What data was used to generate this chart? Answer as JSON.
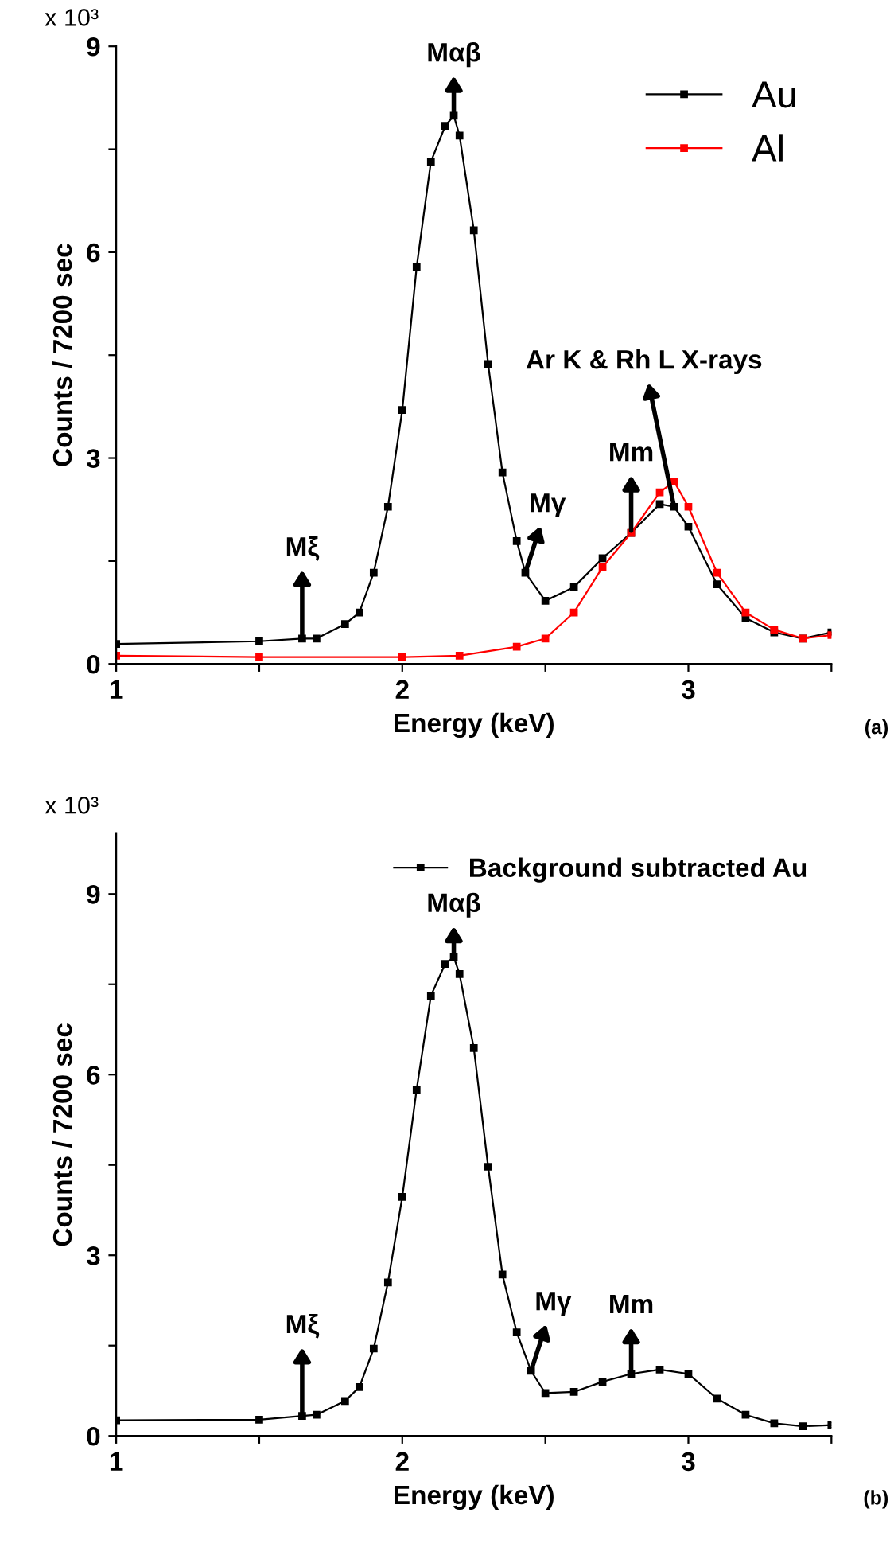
{
  "chart_data": [
    {
      "type": "line",
      "xlabel": "Energy (keV)",
      "ylabel": "Counts / 7200 sec",
      "xlim": [
        1,
        3.5
      ],
      "ylim": [
        0,
        9
      ],
      "xticks": [
        1,
        {
          "value": 1.5,
          "label": null
        },
        2,
        {
          "value": 2.5,
          "label": null
        },
        3,
        {
          "value": 3.5,
          "label": null
        }
      ],
      "yticks": [
        0,
        {
          "value": 1.5,
          "label": null
        },
        3,
        {
          "value": 4.5,
          "label": null
        },
        6,
        {
          "value": 7.5,
          "label": null
        },
        9
      ],
      "legend": "top right",
      "marker": "square",
      "line_style": "solid",
      "grid": false,
      "series": [
        {
          "name": "Au",
          "color": "#000000",
          "x": [
            1.0,
            1.5,
            1.65,
            1.7,
            1.8,
            1.85,
            1.9,
            1.95,
            2.0,
            2.05,
            2.1,
            2.15,
            2.18,
            2.2,
            2.25,
            2.3,
            2.35,
            2.4,
            2.43,
            2.5,
            2.6,
            2.7,
            2.8,
            2.9,
            2.95,
            3.0,
            3.1,
            3.2,
            3.3,
            3.4,
            3.5
          ],
          "values": [
            0.29,
            0.33,
            0.37,
            0.37,
            0.58,
            0.75,
            1.33,
            2.29,
            3.7,
            5.78,
            7.32,
            7.84,
            7.99,
            7.7,
            6.32,
            4.37,
            2.79,
            1.79,
            1.33,
            0.92,
            1.12,
            1.54,
            1.91,
            2.33,
            2.29,
            2.0,
            1.16,
            0.67,
            0.46,
            0.37,
            0.46
          ]
        },
        {
          "name": "Al",
          "color": "#ff0000",
          "x": [
            1.0,
            1.5,
            2.0,
            2.2,
            2.4,
            2.5,
            2.6,
            2.7,
            2.8,
            2.9,
            2.95,
            3.0,
            3.1,
            3.2,
            3.3,
            3.4,
            3.5
          ],
          "values": [
            0.12,
            0.1,
            0.1,
            0.12,
            0.25,
            0.37,
            0.75,
            1.41,
            1.91,
            2.5,
            2.66,
            2.29,
            1.33,
            0.75,
            0.5,
            0.37,
            0.42
          ]
        }
      ],
      "annotations": [
        "x 10³",
        {
          "text": "Mαβ",
          "x": 2.18,
          "y": 7.99
        },
        {
          "text": "Mξ",
          "x": 1.65,
          "y": 0.37
        },
        {
          "text": "Mγ",
          "x": 2.43,
          "y": 1.33
        },
        {
          "text": "Mm",
          "x": 2.8,
          "y": 1.91
        },
        {
          "text": "Ar K & Rh L X-rays",
          "x": 2.95,
          "y": 2.29
        },
        "(a)"
      ]
    },
    {
      "type": "line",
      "xlabel": "Energy (keV)",
      "ylabel": "Counts / 7200 sec",
      "xlim": [
        1,
        3.5
      ],
      "ylim": [
        0,
        10
      ],
      "xticks": [
        1,
        {
          "value": 1.5,
          "label": null
        },
        2,
        {
          "value": 2.5,
          "label": null
        },
        3,
        {
          "value": 3.5,
          "label": null
        }
      ],
      "yticks": [
        0,
        {
          "value": 1.5,
          "label": null
        },
        3,
        {
          "value": 4.5,
          "label": null
        },
        6,
        {
          "value": 7.5,
          "label": null
        },
        9
      ],
      "legend": "top right",
      "marker": "square",
      "line_style": "solid",
      "grid": false,
      "series": [
        {
          "name": "Background subtracted Au",
          "color": "#000000",
          "x": [
            1.0,
            1.5,
            1.65,
            1.7,
            1.8,
            1.85,
            1.9,
            1.95,
            2.0,
            2.05,
            2.1,
            2.15,
            2.18,
            2.2,
            2.25,
            2.3,
            2.35,
            2.4,
            2.45,
            2.5,
            2.6,
            2.7,
            2.8,
            2.9,
            3.0,
            3.1,
            3.2,
            3.3,
            3.4,
            3.5
          ],
          "values": [
            0.26,
            0.27,
            0.33,
            0.35,
            0.58,
            0.81,
            1.45,
            2.55,
            3.97,
            5.75,
            7.31,
            7.84,
            7.95,
            7.67,
            6.44,
            4.47,
            2.68,
            1.72,
            1.08,
            0.71,
            0.73,
            0.9,
            1.03,
            1.1,
            1.03,
            0.62,
            0.35,
            0.21,
            0.16,
            0.18
          ]
        }
      ],
      "annotations": [
        "x 10³",
        {
          "text": "Mαβ",
          "x": 2.18,
          "y": 7.95
        },
        {
          "text": "Mξ",
          "x": 1.65,
          "y": 0.33
        },
        {
          "text": "Mγ",
          "x": 2.45,
          "y": 1.08
        },
        {
          "text": "Mm",
          "x": 2.8,
          "y": 1.03
        },
        "(b)"
      ]
    }
  ]
}
